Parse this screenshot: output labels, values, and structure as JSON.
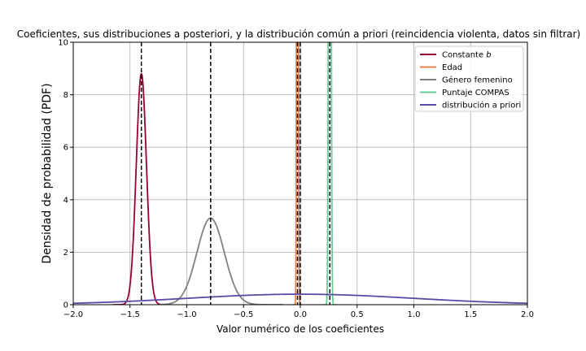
{
  "chart_data": {
    "type": "line",
    "title": "Coeficientes, sus distribuciones a posteriori, y la distribución común a priori (reincidencia violenta, datos sin filtrar)",
    "xlabel": "Valor numérico de los coeficientes",
    "ylabel": "Densidad de probabilidad (PDF)",
    "xlim": [
      -2.0,
      2.0
    ],
    "ylim": [
      0,
      10
    ],
    "xticks": [
      "−2.0",
      "−1.5",
      "−1.0",
      "−0.5",
      "0.0",
      "0.5",
      "1.0",
      "1.5",
      "2.0"
    ],
    "xtick_values": [
      -2.0,
      -1.5,
      -1.0,
      -0.5,
      0.0,
      0.5,
      1.0,
      1.5,
      2.0
    ],
    "yticks": [
      "0",
      "2",
      "4",
      "6",
      "8",
      "10"
    ],
    "ytick_values": [
      0,
      2,
      4,
      6,
      8,
      10
    ],
    "grid": true,
    "legend_position": "top-right",
    "series": [
      {
        "name": "Constante",
        "name_italic": "b",
        "color": "#990033",
        "dist": "normal",
        "mean": -1.4,
        "std": 0.045,
        "peak": 8.8,
        "range": [
          -1.65,
          -1.15
        ]
      },
      {
        "name": "Edad",
        "color": "#e8824a",
        "dist": "normal",
        "mean": -0.025,
        "std": 0.005,
        "peak": 80,
        "range": [
          -0.07,
          0.02
        ]
      },
      {
        "name": "Género femenino",
        "color": "#808080",
        "dist": "normal",
        "mean": -0.79,
        "std": 0.12,
        "peak": 3.3,
        "range": [
          -1.25,
          -0.15
        ]
      },
      {
        "name": "Puntaje COMPAS",
        "color": "#66cc99",
        "dist": "normal",
        "mean": 0.26,
        "std": 0.008,
        "peak": 50,
        "range": [
          0.2,
          0.32
        ]
      },
      {
        "name": "distribución a priori",
        "color": "#5a4aa6",
        "dist": "normal",
        "mean": 0.0,
        "std": 1.0,
        "peak": 0.4,
        "range": [
          -2.0,
          2.0
        ]
      }
    ],
    "vlines": [
      -1.4,
      -0.79,
      -0.025,
      0.0,
      0.26
    ]
  }
}
